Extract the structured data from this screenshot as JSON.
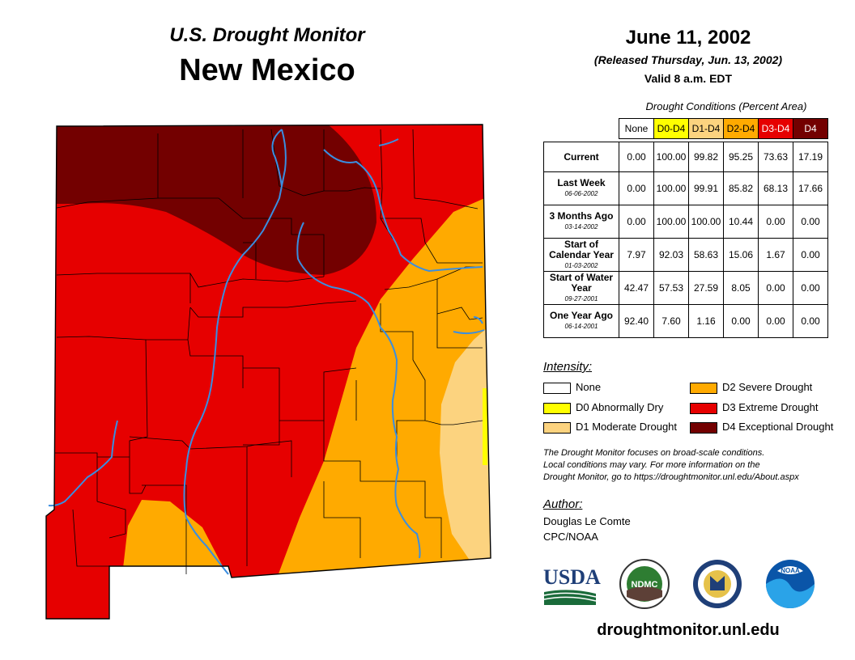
{
  "header": {
    "title_small": "U.S. Drought Monitor",
    "title_big": "New Mexico",
    "date": "June 11, 2002",
    "released": "(Released Thursday, Jun. 13, 2002)",
    "valid": "Valid 8 a.m. EDT"
  },
  "conditions": {
    "caption": "Drought Conditions (Percent Area)",
    "columns": [
      {
        "label": "None",
        "bg": "#ffffff",
        "fg": "#000000"
      },
      {
        "label": "D0-D4",
        "bg": "#ffff00",
        "fg": "#000000"
      },
      {
        "label": "D1-D4",
        "bg": "#fcd37f",
        "fg": "#000000"
      },
      {
        "label": "D2-D4",
        "bg": "#ffaa00",
        "fg": "#000000"
      },
      {
        "label": "D3-D4",
        "bg": "#e60000",
        "fg": "#ffffff"
      },
      {
        "label": "D4",
        "bg": "#730000",
        "fg": "#ffffff"
      }
    ],
    "rows": [
      {
        "label": "Current",
        "date": "",
        "values": [
          "0.00",
          "100.00",
          "99.82",
          "95.25",
          "73.63",
          "17.19"
        ]
      },
      {
        "label": "Last Week",
        "date": "06-06-2002",
        "values": [
          "0.00",
          "100.00",
          "99.91",
          "85.82",
          "68.13",
          "17.66"
        ]
      },
      {
        "label": "3 Months Ago",
        "date": "03-14-2002",
        "values": [
          "0.00",
          "100.00",
          "100.00",
          "10.44",
          "0.00",
          "0.00"
        ]
      },
      {
        "label": "Start of Calendar Year",
        "date": "01-03-2002",
        "values": [
          "7.97",
          "92.03",
          "58.63",
          "15.06",
          "1.67",
          "0.00"
        ]
      },
      {
        "label": "Start of Water Year",
        "date": "09-27-2001",
        "values": [
          "42.47",
          "57.53",
          "27.59",
          "8.05",
          "0.00",
          "0.00"
        ]
      },
      {
        "label": "One Year Ago",
        "date": "06-14-2001",
        "values": [
          "92.40",
          "7.60",
          "1.16",
          "0.00",
          "0.00",
          "0.00"
        ]
      }
    ]
  },
  "legend": {
    "title": "Intensity:",
    "items": [
      {
        "label": "None",
        "color": "#ffffff"
      },
      {
        "label": "D0 Abnormally Dry",
        "color": "#ffff00"
      },
      {
        "label": "D1 Moderate Drought",
        "color": "#fcd37f"
      },
      {
        "label": "D2 Severe Drought",
        "color": "#ffaa00"
      },
      {
        "label": "D3 Extreme Drought",
        "color": "#e60000"
      },
      {
        "label": "D4 Exceptional Drought",
        "color": "#730000"
      }
    ]
  },
  "note": {
    "line1": "The Drought Monitor focuses on broad-scale conditions.",
    "line2": "Local conditions may vary. For more information on the",
    "line3": "Drought Monitor, go to https://droughtmonitor.unl.edu/About.aspx"
  },
  "author": {
    "title": "Author:",
    "name": "Douglas Le Comte",
    "org": "CPC/NOAA"
  },
  "logos": {
    "usda": "USDA",
    "ndmc": "NDMC",
    "noaa": "NOAA"
  },
  "footer": {
    "url": "droughtmonitor.unl.edu"
  },
  "colors": {
    "d1": "#fcd37f",
    "d2": "#ffaa00",
    "d3": "#e60000",
    "d4": "#730000",
    "river": "#3a8ee0",
    "d0": "#ffff00"
  }
}
